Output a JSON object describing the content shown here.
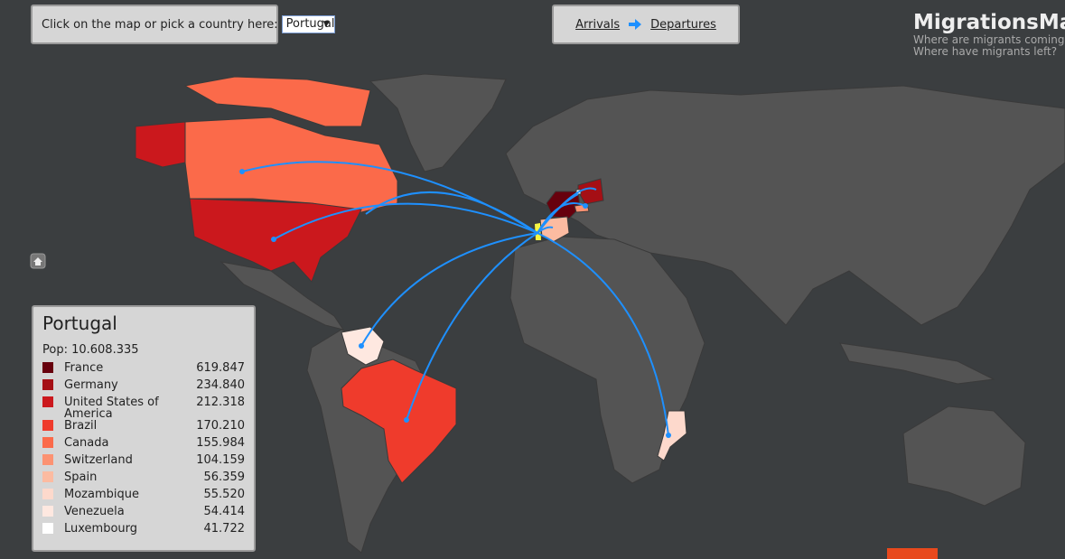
{
  "controls": {
    "label": "Click on the map or pick a country here:",
    "selected": "Portugal",
    "arrivals": "Arrivals",
    "departures": "Departures"
  },
  "header": {
    "title": "MigrationsMap",
    "subtitle_1": "Where are migrants coming",
    "subtitle_2": "Where have migrants left?"
  },
  "panel": {
    "country": "Portugal",
    "population": "Pop: 10.608.335",
    "rows": [
      {
        "name": "France",
        "value": "619.847",
        "color": "#67000d"
      },
      {
        "name": "Germany",
        "value": "234.840",
        "color": "#a50f15"
      },
      {
        "name": "United States of America",
        "value": "212.318",
        "color": "#cb181d"
      },
      {
        "name": "Brazil",
        "value": "170.210",
        "color": "#ef3b2c"
      },
      {
        "name": "Canada",
        "value": "155.984",
        "color": "#fb6a4a"
      },
      {
        "name": "Switzerland",
        "value": "104.159",
        "color": "#fc9272"
      },
      {
        "name": "Spain",
        "value": "56.359",
        "color": "#fcbba1"
      },
      {
        "name": "Mozambique",
        "value": "55.520",
        "color": "#fdd9cc"
      },
      {
        "name": "Venezuela",
        "value": "54.414",
        "color": "#fee8e0"
      },
      {
        "name": "Luxembourg",
        "value": "41.722",
        "color": "#ffffff"
      }
    ]
  }
}
